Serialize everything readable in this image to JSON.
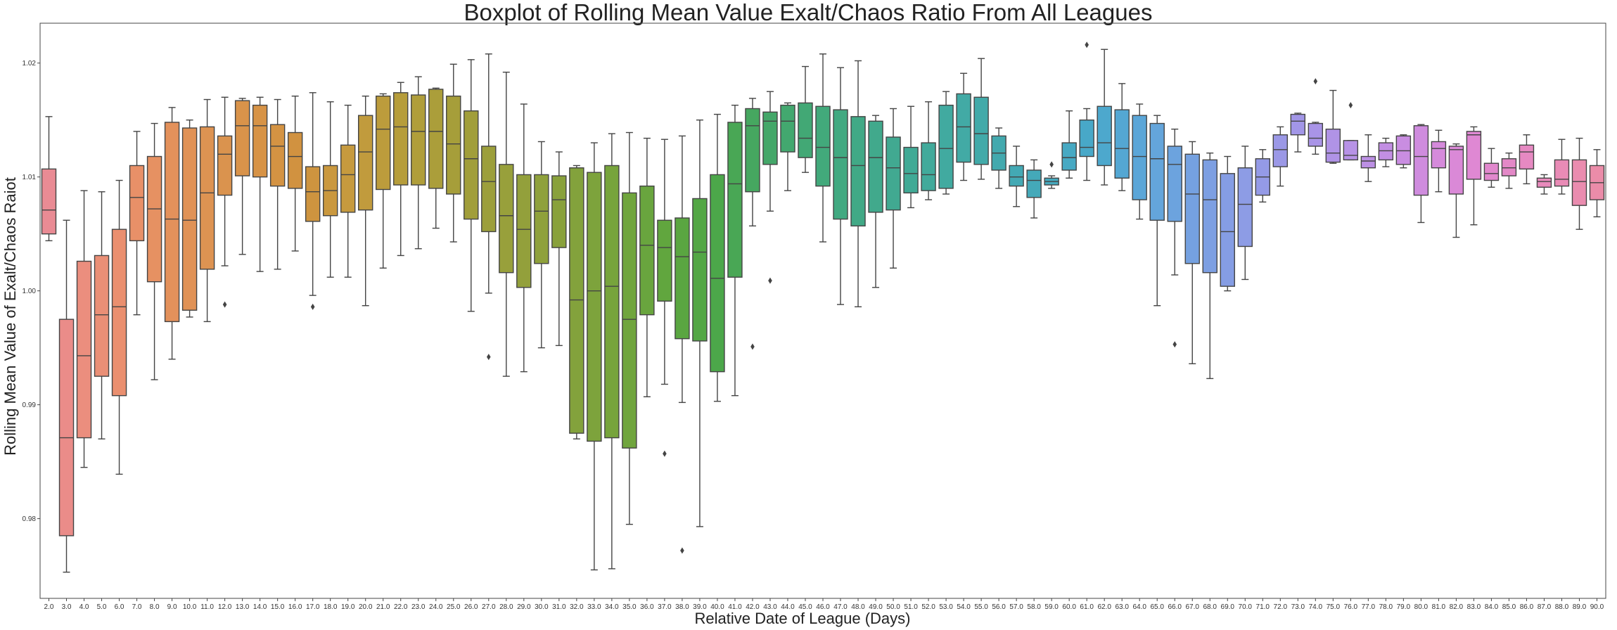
{
  "chart_data": {
    "type": "boxplot",
    "title": "Boxplot of Rolling Mean Value Exalt/Chaos Ratio From All Leagues",
    "xlabel": "Relative Date of League (Days)",
    "ylabel": "Rolling Mean Value of Exalt/Chaos Raiot",
    "ylim": [
      0.973,
      1.0235
    ],
    "yticks": [
      "0.98",
      "0.99",
      "1.00",
      "1.01",
      "1.02"
    ],
    "grid": false,
    "legend": "none",
    "categories": [
      "2.0",
      "3.0",
      "4.0",
      "5.0",
      "6.0",
      "7.0",
      "8.0",
      "9.0",
      "10.0",
      "11.0",
      "12.0",
      "13.0",
      "14.0",
      "15.0",
      "16.0",
      "17.0",
      "18.0",
      "19.0",
      "20.0",
      "21.0",
      "22.0",
      "23.0",
      "24.0",
      "25.0",
      "26.0",
      "27.0",
      "28.0",
      "29.0",
      "30.0",
      "31.0",
      "32.0",
      "33.0",
      "34.0",
      "35.0",
      "36.0",
      "37.0",
      "38.0",
      "39.0",
      "40.0",
      "41.0",
      "42.0",
      "43.0",
      "44.0",
      "45.0",
      "46.0",
      "47.0",
      "48.0",
      "49.0",
      "50.0",
      "51.0",
      "52.0",
      "53.0",
      "54.0",
      "55.0",
      "56.0",
      "57.0",
      "58.0",
      "59.0",
      "60.0",
      "61.0",
      "62.0",
      "63.0",
      "64.0",
      "65.0",
      "66.0",
      "67.0",
      "68.0",
      "69.0",
      "70.0",
      "71.0",
      "72.0",
      "73.0",
      "74.0",
      "75.0",
      "76.0",
      "77.0",
      "78.0",
      "79.0",
      "80.0",
      "81.0",
      "82.0",
      "83.0",
      "84.0",
      "85.0",
      "86.0",
      "87.0",
      "88.0",
      "89.0",
      "90.0"
    ],
    "boxes": [
      [
        1.0044,
        1.005,
        1.0071,
        1.0107,
        1.0153
      ],
      [
        0.9753,
        0.9785,
        0.9871,
        0.9975,
        1.0062
      ],
      [
        0.9845,
        0.9871,
        0.9943,
        1.0026,
        1.0088
      ],
      [
        0.987,
        0.9925,
        0.9979,
        1.0031,
        1.0087
      ],
      [
        0.9839,
        0.9908,
        0.9986,
        1.0054,
        1.0097
      ],
      [
        0.9979,
        1.0044,
        1.0082,
        1.011,
        1.014
      ],
      [
        0.9922,
        1.0008,
        1.0072,
        1.0118,
        1.0147
      ],
      [
        0.994,
        0.9973,
        1.0063,
        1.0148,
        1.0161
      ],
      [
        0.9977,
        0.9983,
        1.0062,
        1.0143,
        1.015
      ],
      [
        0.9973,
        1.0019,
        1.0086,
        1.0144,
        1.0168
      ],
      [
        1.0022,
        1.0084,
        1.012,
        1.0136,
        1.017
      ],
      [
        1.0032,
        1.0101,
        1.0145,
        1.0167,
        1.0169
      ],
      [
        1.0017,
        1.01,
        1.0145,
        1.0163,
        1.017
      ],
      [
        1.0019,
        1.0092,
        1.0127,
        1.0146,
        1.0168
      ],
      [
        1.0035,
        1.009,
        1.0118,
        1.0139,
        1.0171
      ],
      [
        0.9996,
        1.0061,
        1.0087,
        1.0109,
        1.0174
      ],
      [
        1.0012,
        1.0066,
        1.0088,
        1.011,
        1.0166
      ],
      [
        1.0012,
        1.0069,
        1.0102,
        1.0128,
        1.0163
      ],
      [
        0.9987,
        1.0071,
        1.0122,
        1.0154,
        1.0171
      ],
      [
        1.002,
        1.0089,
        1.0142,
        1.0171,
        1.0173
      ],
      [
        1.0031,
        1.0093,
        1.0144,
        1.0174,
        1.0183
      ],
      [
        1.0037,
        1.0093,
        1.014,
        1.0172,
        1.0188
      ],
      [
        1.0055,
        1.009,
        1.014,
        1.0177,
        1.0178
      ],
      [
        1.0043,
        1.0085,
        1.0129,
        1.0171,
        1.0199
      ],
      [
        0.9982,
        1.0063,
        1.0116,
        1.0158,
        1.0203
      ],
      [
        0.9998,
        1.0052,
        1.0096,
        1.0127,
        1.0208
      ],
      [
        0.9925,
        1.0016,
        1.0066,
        1.0111,
        1.0192
      ],
      [
        0.9929,
        1.0003,
        1.0054,
        1.0102,
        1.0164
      ],
      [
        0.995,
        1.0024,
        1.007,
        1.0102,
        1.0131
      ],
      [
        0.9952,
        1.0038,
        1.008,
        1.0101,
        1.0122
      ],
      [
        0.987,
        0.9875,
        0.9992,
        1.0108,
        1.011
      ],
      [
        0.9755,
        0.9868,
        1.0,
        1.0104,
        1.013
      ],
      [
        0.9756,
        0.9871,
        1.0004,
        1.011,
        1.0138
      ],
      [
        0.9795,
        0.9862,
        0.9975,
        1.0086,
        1.0139
      ],
      [
        0.9907,
        0.9979,
        1.004,
        1.0092,
        1.0134
      ],
      [
        0.9918,
        0.9991,
        1.0038,
        1.0062,
        1.0133
      ],
      [
        0.9902,
        0.9958,
        1.003,
        1.0064,
        1.0136
      ],
      [
        0.9793,
        0.9956,
        1.0034,
        1.0081,
        1.015
      ],
      [
        0.9903,
        0.9929,
        1.0011,
        1.0102,
        1.0155
      ],
      [
        0.9908,
        1.0012,
        1.0094,
        1.0148,
        1.0163
      ],
      [
        1.0057,
        1.0087,
        1.0145,
        1.016,
        1.0169
      ],
      [
        1.007,
        1.0111,
        1.0149,
        1.0157,
        1.0175
      ],
      [
        1.0088,
        1.0122,
        1.0149,
        1.0163,
        1.0165
      ],
      [
        1.0104,
        1.0117,
        1.0134,
        1.0165,
        1.0197
      ],
      [
        1.0043,
        1.0092,
        1.0126,
        1.0162,
        1.0208
      ],
      [
        0.9988,
        1.0063,
        1.0117,
        1.0159,
        1.0196
      ],
      [
        0.9986,
        1.0057,
        1.011,
        1.0153,
        1.0202
      ],
      [
        1.0003,
        1.0069,
        1.0117,
        1.0149,
        1.0154
      ],
      [
        1.002,
        1.0071,
        1.0108,
        1.0135,
        1.016
      ],
      [
        1.0073,
        1.0086,
        1.0103,
        1.0126,
        1.0162
      ],
      [
        1.008,
        1.0088,
        1.0102,
        1.013,
        1.0166
      ],
      [
        1.0085,
        1.009,
        1.0125,
        1.0163,
        1.0175
      ],
      [
        1.0097,
        1.0113,
        1.0144,
        1.0173,
        1.0191
      ],
      [
        1.0098,
        1.0111,
        1.0138,
        1.017,
        1.0204
      ],
      [
        1.009,
        1.0106,
        1.0121,
        1.0136,
        1.0143
      ],
      [
        1.0074,
        1.0092,
        1.01,
        1.011,
        1.0127
      ],
      [
        1.0064,
        1.0082,
        1.0097,
        1.0106,
        1.0115
      ],
      [
        1.009,
        1.0093,
        1.0096,
        1.0099,
        1.0101
      ],
      [
        1.0099,
        1.0106,
        1.0117,
        1.013,
        1.0158
      ],
      [
        1.0097,
        1.0118,
        1.0126,
        1.015,
        1.016
      ],
      [
        1.0093,
        1.011,
        1.013,
        1.0162,
        1.0212
      ],
      [
        1.0088,
        1.0099,
        1.0125,
        1.0159,
        1.0182
      ],
      [
        1.0063,
        1.008,
        1.0118,
        1.0154,
        1.0164
      ],
      [
        0.9987,
        1.0062,
        1.0116,
        1.0147,
        1.0154
      ],
      [
        1.0014,
        1.0061,
        1.0111,
        1.0127,
        1.0142
      ],
      [
        0.9936,
        1.0024,
        1.0085,
        1.012,
        1.0131
      ],
      [
        0.9923,
        1.0016,
        1.008,
        1.0115,
        1.0121
      ],
      [
        1.0,
        1.0004,
        1.0052,
        1.0103,
        1.0118
      ],
      [
        1.001,
        1.0039,
        1.0076,
        1.0108,
        1.0127
      ],
      [
        1.0078,
        1.0084,
        1.01,
        1.0116,
        1.0124
      ],
      [
        1.0092,
        1.0109,
        1.0124,
        1.0137,
        1.0144
      ],
      [
        1.0122,
        1.0137,
        1.0149,
        1.0155,
        1.0156
      ],
      [
        1.012,
        1.0127,
        1.0134,
        1.0147,
        1.0148
      ],
      [
        1.0112,
        1.0113,
        1.0121,
        1.0142,
        1.0176
      ],
      [
        1.0115,
        1.0115,
        1.0119,
        1.0132,
        1.0132
      ],
      [
        1.0096,
        1.0108,
        1.0114,
        1.0118,
        1.0137
      ],
      [
        1.0109,
        1.0115,
        1.0123,
        1.013,
        1.0134
      ],
      [
        1.0108,
        1.0111,
        1.0123,
        1.0136,
        1.0137
      ],
      [
        1.006,
        1.0084,
        1.0118,
        1.0145,
        1.0146
      ],
      [
        1.0087,
        1.0108,
        1.0125,
        1.0131,
        1.0141
      ],
      [
        1.0047,
        1.0085,
        1.0124,
        1.0127,
        1.0129
      ],
      [
        1.0058,
        1.0098,
        1.0137,
        1.014,
        1.0144
      ],
      [
        1.0091,
        1.0097,
        1.0103,
        1.0112,
        1.0125
      ],
      [
        1.009,
        1.0101,
        1.0108,
        1.0116,
        1.0121
      ],
      [
        1.0094,
        1.0107,
        1.0122,
        1.0128,
        1.0137
      ],
      [
        1.0085,
        1.0091,
        1.0096,
        1.0099,
        1.0102
      ],
      [
        1.0085,
        1.0092,
        1.0098,
        1.0115,
        1.0133
      ],
      [
        1.0054,
        1.0075,
        1.0096,
        1.0115,
        1.0134
      ],
      [
        1.0065,
        1.008,
        1.0095,
        1.011,
        1.0124
      ]
    ],
    "outliers": [
      {
        "category": "12.0",
        "y": 0.9988
      },
      {
        "category": "17.0",
        "y": 0.9986
      },
      {
        "category": "27.0",
        "y": 0.9942
      },
      {
        "category": "37.0",
        "y": 0.9857
      },
      {
        "category": "38.0",
        "y": 0.9772
      },
      {
        "category": "42.0",
        "y": 0.9951
      },
      {
        "category": "43.0",
        "y": 1.0009
      },
      {
        "category": "59.0",
        "y": 1.0111
      },
      {
        "category": "61.0",
        "y": 1.0216
      },
      {
        "category": "66.0",
        "y": 0.9953
      },
      {
        "category": "74.0",
        "y": 1.0184
      },
      {
        "category": "76.0",
        "y": 1.0163
      }
    ],
    "colors": [
      "#E98B94",
      "#EB8E7A",
      "#E9906A",
      "#E3915A",
      "#DB9350",
      "#D79346",
      "#D0923F",
      "#C89A3E",
      "#BC9C3C",
      "#AE9E3A",
      "#A29E3A",
      "#97A03B",
      "#8CA13B",
      "#7EA33C",
      "#6EA53D",
      "#5CA63F",
      "#4CA74A",
      "#45A765",
      "#42A874",
      "#41A982",
      "#41A98F",
      "#41AA9B",
      "#42AAA6",
      "#43A9B2",
      "#45A9BE",
      "#49A8CA",
      "#5AA6D8",
      "#6EA3DF",
      "#829EE3",
      "#949AE6",
      "#A495E7",
      "#B592E6",
      "#C38EE3",
      "#D28BDD",
      "#DF88D4",
      "#E488C6",
      "#E98BB8",
      "#EB8CA9"
    ]
  }
}
